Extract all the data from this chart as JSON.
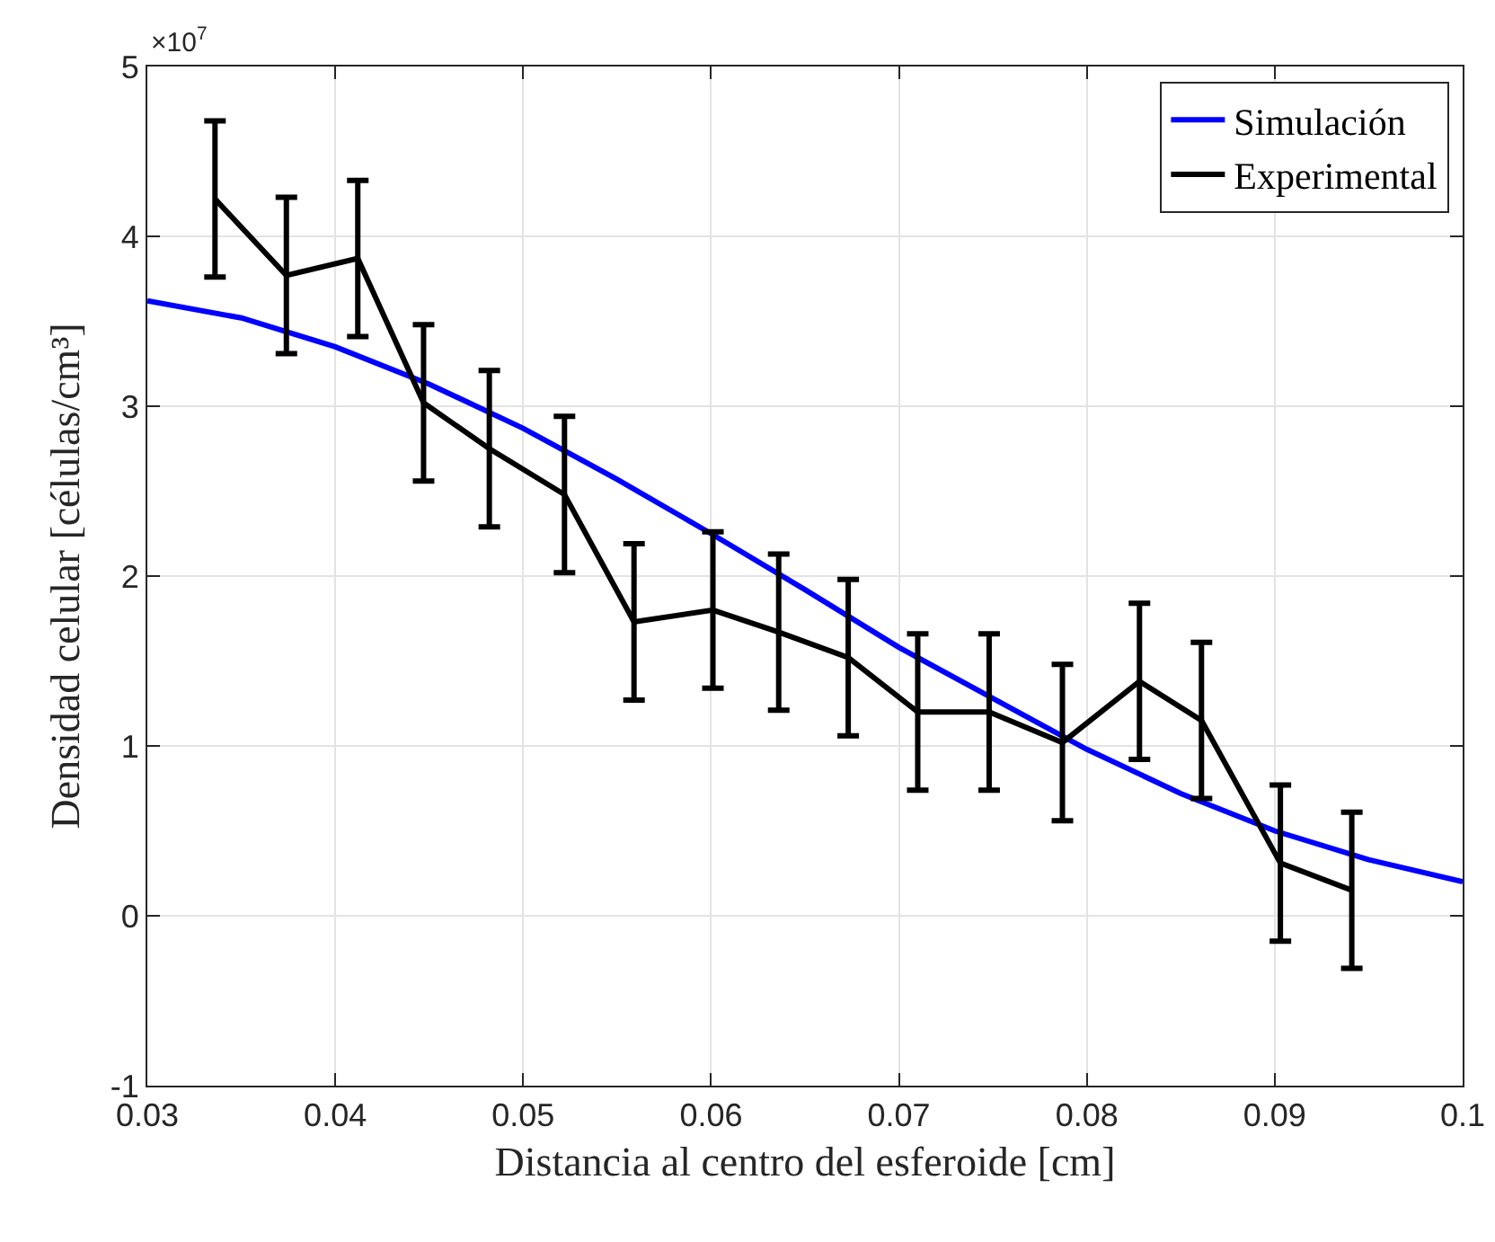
{
  "chart_data": {
    "type": "line",
    "xlabel": "Distancia al centro del esferoide [cm]",
    "ylabel": "Densidad celular [células/cm³]",
    "annotations": [
      "×10$^{7}$"
    ],
    "series": [
      {
        "name": "Simulación",
        "color": "#0000ff",
        "x": [
          0.03,
          0.035,
          0.04,
          0.045,
          0.05,
          0.055,
          0.06,
          0.065,
          0.07,
          0.075,
          0.08,
          0.085,
          0.09,
          0.095,
          0.1
        ],
        "values": [
          3.62,
          3.52,
          3.35,
          3.13,
          2.87,
          2.57,
          2.25,
          1.92,
          1.58,
          1.28,
          0.98,
          0.72,
          0.5,
          0.33,
          0.2
        ]
      },
      {
        "name": "Experimental",
        "color": "#000000",
        "x": [
          0.0336,
          0.0374,
          0.0412,
          0.0447,
          0.0482,
          0.0522,
          0.0559,
          0.0601,
          0.0636,
          0.0673,
          0.071,
          0.0748,
          0.0787,
          0.0828,
          0.0861,
          0.0903,
          0.0941
        ],
        "values": [
          4.22,
          3.77,
          3.87,
          3.02,
          2.75,
          2.48,
          1.73,
          1.8,
          1.67,
          1.52,
          1.2,
          1.2,
          1.02,
          1.38,
          1.15,
          0.31,
          0.15
        ],
        "errors": [
          0.46,
          0.46,
          0.46,
          0.46,
          0.46,
          0.46,
          0.46,
          0.46,
          0.46,
          0.46,
          0.46,
          0.46,
          0.46,
          0.46,
          0.46,
          0.46,
          0.46
        ]
      }
    ],
    "xlim": [
      0.03,
      0.1
    ],
    "xticks": [
      0.03,
      0.04,
      0.05,
      0.06,
      0.07,
      0.08,
      0.09,
      0.1
    ],
    "ylim": [
      -1,
      5
    ],
    "yticks": [
      -1,
      0,
      1,
      2,
      3,
      4,
      5
    ],
    "grid": true,
    "legend": "top right",
    "marker": "none",
    "line_style": "solid"
  }
}
